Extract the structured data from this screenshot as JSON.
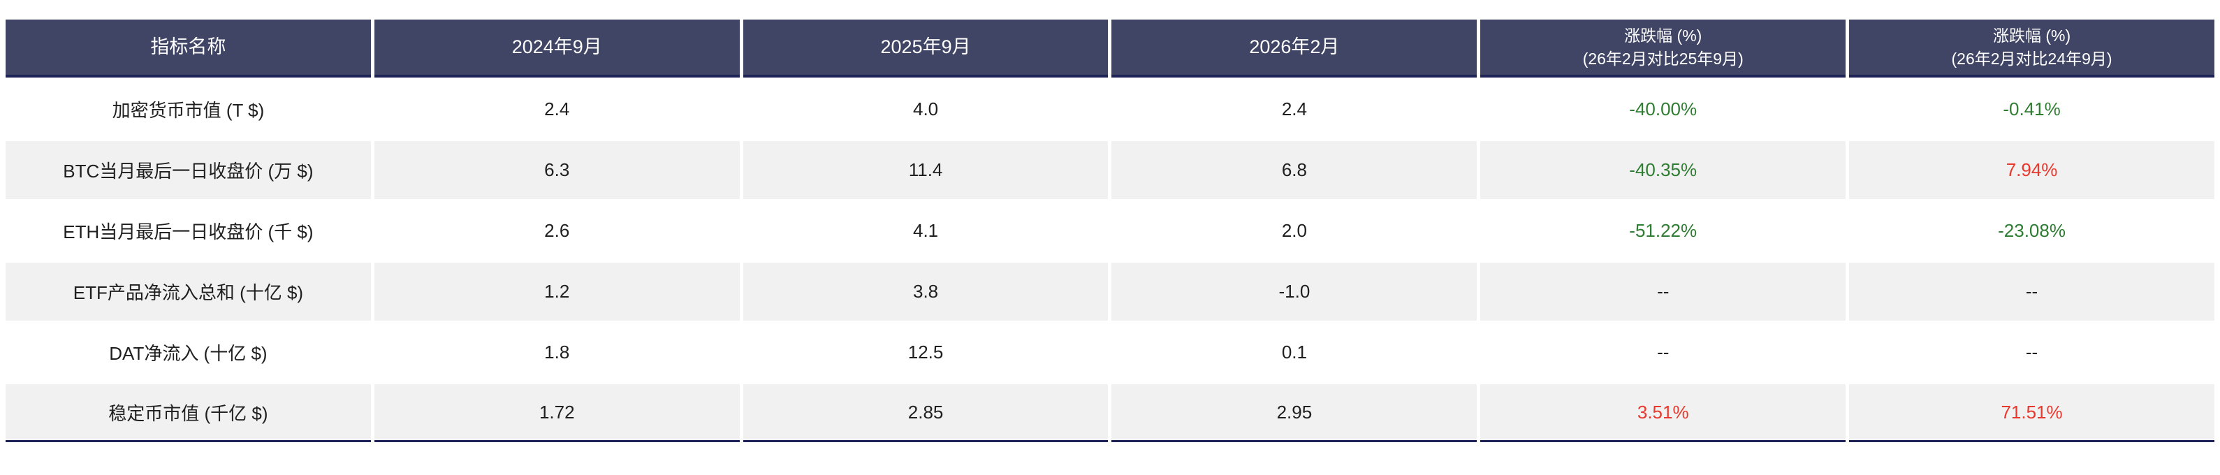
{
  "colors": {
    "header_bg": "#404566",
    "header_border": "#1d2357",
    "header_text": "#ffffff",
    "row_alt_bg": "#f1f1f1",
    "body_text": "#1f1f1f",
    "negative_change": "#2e7d32",
    "positive_change": "#e9382d"
  },
  "table": {
    "headers": [
      {
        "line1": "指标名称"
      },
      {
        "line1": "2024年9月"
      },
      {
        "line1": "2025年9月"
      },
      {
        "line1": "2026年2月"
      },
      {
        "line1": "涨跌幅 (%)",
        "line2": "(26年2月对比25年9月)"
      },
      {
        "line1": "涨跌幅 (%)",
        "line2": "(26年2月对比24年9月)"
      }
    ],
    "rows": [
      {
        "indicator": "加密货币市值 (T $)",
        "sep2024": "2.4",
        "sep2025": "4.0",
        "feb2026": "2.4",
        "chg_feb26_vs_sep25": {
          "text": "-40.00%",
          "tone": "green"
        },
        "chg_feb26_vs_sep24": {
          "text": "-0.41%",
          "tone": "green"
        }
      },
      {
        "indicator": "BTC当月最后一日收盘价 (万 $)",
        "sep2024": "6.3",
        "sep2025": "11.4",
        "feb2026": "6.8",
        "chg_feb26_vs_sep25": {
          "text": "-40.35%",
          "tone": "green"
        },
        "chg_feb26_vs_sep24": {
          "text": "7.94%",
          "tone": "red"
        }
      },
      {
        "indicator": "ETH当月最后一日收盘价 (千 $)",
        "sep2024": "2.6",
        "sep2025": "4.1",
        "feb2026": "2.0",
        "chg_feb26_vs_sep25": {
          "text": "-51.22%",
          "tone": "green"
        },
        "chg_feb26_vs_sep24": {
          "text": "-23.08%",
          "tone": "green"
        }
      },
      {
        "indicator": "ETF产品净流入总和 (十亿 $)",
        "sep2024": "1.2",
        "sep2025": "3.8",
        "feb2026": "-1.0",
        "chg_feb26_vs_sep25": {
          "text": "--",
          "tone": "neutral"
        },
        "chg_feb26_vs_sep24": {
          "text": "--",
          "tone": "neutral"
        }
      },
      {
        "indicator": "DAT净流入 (十亿 $)",
        "sep2024": "1.8",
        "sep2025": "12.5",
        "feb2026": "0.1",
        "chg_feb26_vs_sep25": {
          "text": "--",
          "tone": "neutral"
        },
        "chg_feb26_vs_sep24": {
          "text": "--",
          "tone": "neutral"
        }
      },
      {
        "indicator": "稳定币市值 (千亿 $)",
        "sep2024": "1.72",
        "sep2025": "2.85",
        "feb2026": "2.95",
        "chg_feb26_vs_sep25": {
          "text": "3.51%",
          "tone": "red"
        },
        "chg_feb26_vs_sep24": {
          "text": "71.51%",
          "tone": "red"
        }
      }
    ]
  },
  "chart_data": {
    "type": "table",
    "columns": [
      "指标名称",
      "2024年9月",
      "2025年9月",
      "2026年2月",
      "涨跌幅 (%) (26年2月对比25年9月)",
      "涨跌幅 (%) (26年2月对比24年9月)"
    ],
    "rows": [
      [
        "加密货币市值 (T $)",
        2.4,
        4.0,
        2.4,
        "-40.00%",
        "-0.41%"
      ],
      [
        "BTC当月最后一日收盘价 (万 $)",
        6.3,
        11.4,
        6.8,
        "-40.35%",
        "7.94%"
      ],
      [
        "ETH当月最后一日收盘价 (千 $)",
        2.6,
        4.1,
        2.0,
        "-51.22%",
        "-23.08%"
      ],
      [
        "ETF产品净流入总和 (十亿 $)",
        1.2,
        3.8,
        -1.0,
        "--",
        "--"
      ],
      [
        "DAT净流入 (十亿 $)",
        1.8,
        12.5,
        0.1,
        "--",
        "--"
      ],
      [
        "稳定币市值 (千亿 $)",
        1.72,
        2.85,
        2.95,
        "3.51%",
        "71.51%"
      ]
    ],
    "layout_hints": {
      "zebra_striping": true,
      "negative_values_green": true,
      "positive_values_red": true,
      "header_style": "dark-navy"
    }
  }
}
